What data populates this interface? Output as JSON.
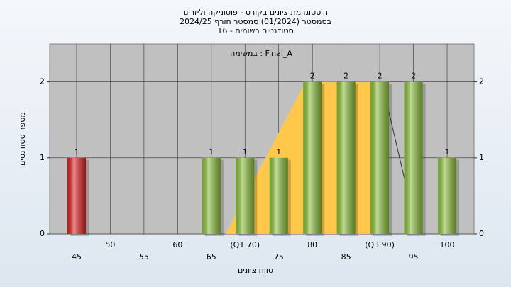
{
  "chart_data": {
    "type": "bar",
    "title": [
      "היסטוגרמת ציונים בקורס - פוטוניקה וליזרים",
      "בסמסטר (01/2024) סמסטר חורף 2024/25",
      "סטודנטים רשומים - 16"
    ],
    "annotation": "במשימה : Final_A",
    "y_label": "מספר סטודנטים",
    "x_label": "טווח ציונים",
    "categories": [
      "45",
      "50",
      "55",
      "60",
      "65",
      "(Q1 70)",
      "75",
      "80",
      "85",
      "(Q3 90)",
      "95",
      "100"
    ],
    "values": [
      1,
      0,
      0,
      0,
      1,
      1,
      1,
      2,
      2,
      2,
      2,
      1
    ],
    "colors": [
      "#e02020",
      "#8cbf3a",
      "#8cbf3a",
      "#8cbf3a",
      "#8cbf3a",
      "#8cbf3a",
      "#8cbf3a",
      "#8cbf3a",
      "#8cbf3a",
      "#8cbf3a",
      "#8cbf3a",
      "#8cbf3a"
    ],
    "quartile_color": "#ffc84a",
    "ylim": [
      0,
      2.5
    ],
    "yticks": [
      0,
      1,
      2
    ],
    "grid": true
  }
}
